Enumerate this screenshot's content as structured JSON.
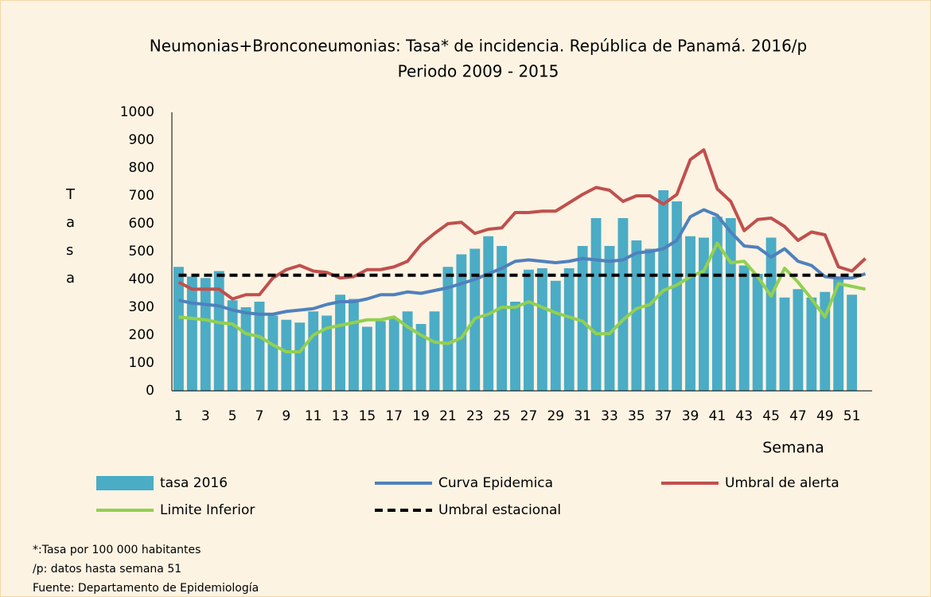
{
  "chart_data": {
    "type": "bar-line",
    "title": "Neumonias+Bronconeumonias: Tasa* de incidencia. República de Panamá. 2016/p",
    "subtitle": "Periodo 2009 - 2015",
    "y_label": "Tasa",
    "x_label": "Semana",
    "categories": [
      "1",
      null,
      "3",
      null,
      "5",
      null,
      "7",
      null,
      "9",
      null,
      "11",
      null,
      "13",
      null,
      "15",
      null,
      "17",
      null,
      "19",
      null,
      "21",
      null,
      "23",
      null,
      "25",
      null,
      "27",
      null,
      "29",
      null,
      "31",
      null,
      "33",
      null,
      "35",
      null,
      "37",
      null,
      "39",
      null,
      "41",
      null,
      "43",
      null,
      "45",
      null,
      "47",
      null,
      "49",
      null,
      "51",
      null
    ],
    "ylim": [
      0,
      1000
    ],
    "yticks": [
      0,
      100,
      200,
      300,
      400,
      500,
      600,
      700,
      800,
      900,
      1000
    ],
    "series": [
      {
        "name": "tasa 2016",
        "kind": "bar",
        "color": "#4bacc6",
        "values": [
          445,
          410,
          405,
          430,
          325,
          300,
          320,
          270,
          255,
          245,
          285,
          270,
          345,
          330,
          230,
          250,
          260,
          285,
          240,
          285,
          445,
          490,
          510,
          555,
          520,
          320,
          435,
          440,
          395,
          440,
          520,
          620,
          520,
          620,
          540,
          510,
          720,
          680,
          555,
          550,
          625,
          620,
          450,
          420,
          550,
          335,
          365,
          335,
          355,
          410,
          345,
          null
        ]
      },
      {
        "name": "Curva Epidemica",
        "kind": "line",
        "color": "#4f81bd",
        "values": [
          325,
          315,
          310,
          305,
          290,
          280,
          275,
          275,
          285,
          290,
          295,
          310,
          320,
          320,
          330,
          345,
          345,
          355,
          350,
          360,
          370,
          385,
          400,
          420,
          440,
          465,
          470,
          465,
          460,
          465,
          475,
          470,
          465,
          470,
          495,
          500,
          510,
          540,
          625,
          650,
          630,
          570,
          520,
          515,
          480,
          510,
          465,
          450,
          410,
          405,
          405,
          420
        ]
      },
      {
        "name": "Umbral de alerta",
        "kind": "line",
        "color": "#c0504d",
        "values": [
          390,
          365,
          365,
          365,
          330,
          345,
          345,
          405,
          435,
          450,
          430,
          425,
          405,
          410,
          435,
          435,
          445,
          465,
          525,
          565,
          600,
          605,
          565,
          580,
          585,
          640,
          640,
          645,
          645,
          675,
          705,
          730,
          720,
          680,
          700,
          700,
          670,
          705,
          830,
          865,
          725,
          680,
          575,
          615,
          620,
          590,
          540,
          570,
          560,
          445,
          430,
          475
        ]
      },
      {
        "name": "Limite Inferior",
        "kind": "line",
        "color": "#92d050",
        "values": [
          265,
          260,
          255,
          245,
          240,
          205,
          195,
          165,
          140,
          140,
          200,
          225,
          235,
          245,
          255,
          255,
          265,
          230,
          200,
          175,
          170,
          190,
          260,
          275,
          300,
          300,
          320,
          300,
          280,
          265,
          250,
          205,
          205,
          255,
          295,
          310,
          360,
          380,
          410,
          430,
          530,
          460,
          465,
          410,
          340,
          440,
          390,
          330,
          265,
          385,
          375,
          365
        ]
      },
      {
        "name": "Umbral estacional",
        "kind": "dashed",
        "color": "#000000",
        "values": [
          415,
          415,
          415,
          415,
          415,
          415,
          415,
          415,
          415,
          415,
          415,
          415,
          415,
          415,
          415,
          415,
          415,
          415,
          415,
          415,
          415,
          415,
          415,
          415,
          415,
          415,
          415,
          415,
          415,
          415,
          415,
          415,
          415,
          415,
          415,
          415,
          415,
          415,
          415,
          415,
          415,
          415,
          415,
          415,
          415,
          415,
          415,
          415,
          415,
          415,
          415,
          415
        ]
      }
    ],
    "notes": [
      "*:Tasa por 100 000 habitantes",
      "/p: datos hasta semana 51",
      "Fuente: Departamento de Epidemiología"
    ]
  }
}
